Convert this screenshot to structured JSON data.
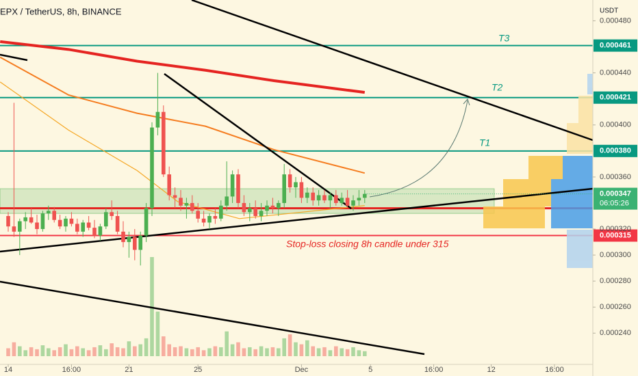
{
  "chart_data": {
    "type": "candlestick",
    "title": "EPX / TetherUS, 8h, BINANCE",
    "y_axis_label": "USDT",
    "xlim": [
      -1.43,
      101.67
    ],
    "xticks": [
      {
        "value": 0,
        "label": "14"
      },
      {
        "value": 11,
        "label": "16:00"
      },
      {
        "value": 21,
        "label": "21"
      },
      {
        "value": 33,
        "label": "25"
      },
      {
        "value": 51,
        "label": "Dec"
      },
      {
        "value": 63,
        "label": "5"
      },
      {
        "value": 74,
        "label": "16:00"
      },
      {
        "value": 84,
        "label": "12"
      },
      {
        "value": 95,
        "label": "16:00"
      }
    ],
    "ylim": [
      0.000216,
      0.000496
    ],
    "yticks": [
      {
        "value": 0.00048,
        "label": "0.000480"
      },
      {
        "value": 0.00044,
        "label": "0.000440"
      },
      {
        "value": 0.0004,
        "label": "0.000400"
      },
      {
        "value": 0.00036,
        "label": "0.000360"
      },
      {
        "value": 0.00032,
        "label": "0.000320"
      },
      {
        "value": 0.0003,
        "label": "0.000300"
      },
      {
        "value": 0.00028,
        "label": "0.000280"
      },
      {
        "value": 0.00026,
        "label": "0.000260"
      },
      {
        "value": 0.00024,
        "label": "0.000240"
      }
    ],
    "grid": false,
    "up_color": "#4caf50",
    "down_color": "#ef5350",
    "open": [
      0.00033,
      0.000322,
      0.000318,
      0.000326,
      0.000329,
      0.000325,
      0.00032,
      0.000332,
      0.000334,
      0.000327,
      0.000322,
      0.000328,
      0.000324,
      0.000318,
      0.000325,
      0.000321,
      0.000315,
      0.000322,
      0.000333,
      0.00033,
      0.000318,
      0.00031,
      0.000314,
      0.000304,
      0.000315,
      0.000336,
      0.000398,
      0.00041,
      0.000362,
      0.000346,
      0.000344,
      0.000338,
      0.00034,
      0.000334,
      0.000328,
      0.000325,
      0.00033,
      0.000328,
      0.000338,
      0.000345,
      0.000362,
      0.00034,
      0.000333,
      0.000336,
      0.00033,
      0.000334,
      0.000338,
      0.000336,
      0.00034,
      0.000362,
      0.000352,
      0.000356,
      0.000344,
      0.000348,
      0.000342,
      0.000346,
      0.000342,
      0.000346,
      0.00034,
      0.000344,
      0.000338,
      0.000342,
      0.000344
    ],
    "high": [
      0.000333,
      0.000417,
      0.000328,
      0.000333,
      0.000336,
      0.000331,
      0.000334,
      0.000338,
      0.000337,
      0.000331,
      0.00033,
      0.000333,
      0.000328,
      0.000327,
      0.00033,
      0.000327,
      0.000324,
      0.000336,
      0.000342,
      0.000334,
      0.000326,
      0.000318,
      0.00032,
      0.000318,
      0.00034,
      0.000402,
      0.00044,
      0.000415,
      0.000368,
      0.000352,
      0.00035,
      0.000344,
      0.000346,
      0.00034,
      0.000334,
      0.000332,
      0.000336,
      0.000342,
      0.000372,
      0.000365,
      0.000366,
      0.000346,
      0.00034,
      0.000342,
      0.00034,
      0.000342,
      0.000344,
      0.000342,
      0.00037,
      0.000366,
      0.00036,
      0.00036,
      0.000352,
      0.000352,
      0.00035,
      0.00035,
      0.000348,
      0.00035,
      0.000348,
      0.00035,
      0.000346,
      0.00035,
      0.00035
    ],
    "low": [
      0.000318,
      0.000314,
      0.0003,
      0.00032,
      0.000324,
      0.000316,
      0.000318,
      0.000327,
      0.000325,
      0.00032,
      0.000318,
      0.000322,
      0.000316,
      0.000314,
      0.000319,
      0.000313,
      0.000311,
      0.00032,
      0.000327,
      0.000316,
      0.000306,
      0.000298,
      0.000296,
      0.000292,
      0.00031,
      0.00033,
      0.000392,
      0.00036,
      0.000342,
      0.000336,
      0.000334,
      0.000328,
      0.000332,
      0.000325,
      0.000322,
      0.00032,
      0.000324,
      0.000326,
      0.000334,
      0.00034,
      0.000336,
      0.00033,
      0.000326,
      0.000328,
      0.000326,
      0.00033,
      0.000332,
      0.00033,
      0.000336,
      0.000348,
      0.000344,
      0.00034,
      0.00034,
      0.000338,
      0.000338,
      0.00034,
      0.000336,
      0.000338,
      0.000338,
      0.000336,
      0.000334,
      0.000338,
      0.00034
    ],
    "close": [
      0.000322,
      0.000318,
      0.000326,
      0.000329,
      0.000325,
      0.00032,
      0.000332,
      0.000334,
      0.000327,
      0.000322,
      0.000328,
      0.000324,
      0.000318,
      0.000325,
      0.000321,
      0.000315,
      0.000322,
      0.000333,
      0.00033,
      0.000318,
      0.00031,
      0.000314,
      0.000304,
      0.000315,
      0.000336,
      0.000398,
      0.00041,
      0.000362,
      0.000346,
      0.000344,
      0.000338,
      0.00034,
      0.000334,
      0.000328,
      0.000325,
      0.00033,
      0.000328,
      0.000338,
      0.000345,
      0.000362,
      0.00034,
      0.000333,
      0.000336,
      0.00033,
      0.000334,
      0.000338,
      0.000336,
      0.00034,
      0.000362,
      0.000352,
      0.000356,
      0.000344,
      0.000348,
      0.000342,
      0.000346,
      0.000342,
      0.000346,
      0.00034,
      0.000344,
      0.000338,
      0.000342,
      0.000344,
      0.000347
    ],
    "volume": [
      8,
      14,
      10,
      6,
      9,
      7,
      11,
      8,
      6,
      9,
      12,
      7,
      10,
      8,
      6,
      9,
      11,
      7,
      13,
      9,
      8,
      15,
      10,
      12,
      18,
      100,
      45,
      20,
      12,
      9,
      10,
      8,
      7,
      9,
      6,
      8,
      10,
      9,
      25,
      12,
      14,
      8,
      9,
      7,
      10,
      8,
      9,
      8,
      18,
      22,
      14,
      12,
      16,
      10,
      8,
      9,
      6,
      10,
      8,
      7,
      9,
      6,
      5
    ],
    "moving_averages": [
      {
        "color": "#e52421",
        "x": [
          -1.4,
          10.5,
          22.4,
          34.3,
          46.2,
          62
        ],
        "values": [
          0.000464,
          0.000458,
          0.000449,
          0.000442,
          0.000434,
          0.000425
        ]
      },
      {
        "color": "#f57c1f",
        "x": [
          -1.4,
          10.5,
          22.4,
          34.3,
          46.2,
          62
        ],
        "values": [
          0.000452,
          0.000423,
          0.000409,
          0.000399,
          0.000381,
          0.000363
        ]
      },
      {
        "color": "#f5a623",
        "x": [
          -1.4,
          10.5,
          22.4,
          29.5,
          40.2,
          62
        ],
        "values": [
          0.000433,
          0.000396,
          0.000365,
          0.000341,
          0.000328,
          0.000338
        ]
      }
    ],
    "zone": [
      0.000332,
      0.000351
    ],
    "support": {
      "value": 0.000336,
      "color": "#e52421"
    },
    "levels": [
      {
        "value": 0.000461,
        "label": "0.000461",
        "color": "#089981"
      },
      {
        "value": 0.000421,
        "label": "0.000421",
        "color": "#089981"
      },
      {
        "value": 0.00038,
        "label": "0.000380",
        "color": "#089981"
      },
      {
        "value": 0.000315,
        "label": "0.000315",
        "color": "#f23645"
      }
    ],
    "last_price": {
      "value": 0.000347,
      "label": "0.000347",
      "countdown": "06:05:26",
      "color": "#3bb273"
    },
    "annotations": [
      "T3",
      "T2",
      "T1",
      "Stop-loss closing 8h candle under 315"
    ]
  }
}
